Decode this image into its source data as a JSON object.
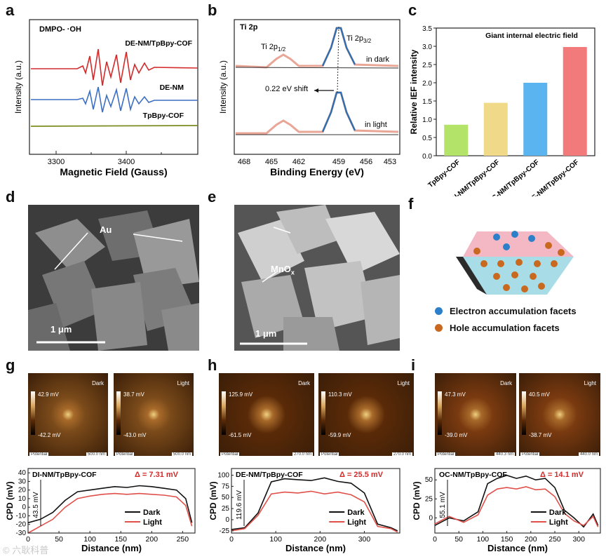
{
  "panels": {
    "a": {
      "label": "a",
      "tag": "DMPO- ·OH",
      "xlabel": "Magnetic Field (Gauss)",
      "ylabel": "Intensity (a.u.)",
      "xticks": [
        "3300",
        "3400"
      ],
      "traces": [
        "DE-NM/TpBpy-COF",
        "DE-NM",
        "TpBpy-COF"
      ],
      "colors": [
        "#d42a2a",
        "#3d6fc4",
        "#7a8c1f"
      ]
    },
    "b": {
      "label": "b",
      "tag": "Ti 2p",
      "xlabel": "Binding Energy (eV)",
      "ylabel": "Intensity (a.u.)",
      "xticks": [
        "468",
        "465",
        "462",
        "459",
        "456",
        "453"
      ],
      "peak_half": "Ti 2p",
      "peak_half_sub": "1/2",
      "peak_32": "Ti 2p",
      "peak_32_sub": "3/2",
      "dark": "in dark",
      "light": "in light",
      "shift": "0.22 eV shift"
    },
    "c": {
      "label": "c",
      "annotation": "Giant internal electric field"
    },
    "d": {
      "label": "d",
      "marker": "Au",
      "scale": "1 μm"
    },
    "e": {
      "label": "e",
      "marker": "MnO",
      "marker_sub": "x",
      "scale": "1 μm"
    },
    "f": {
      "label": "f",
      "electron": "Electron accumulation facets",
      "hole": "Hole accumulation facets",
      "electron_color": "#2c7fc9",
      "hole_color": "#c8691f"
    },
    "g": {
      "label": "g",
      "map_dark": {
        "mode": "Dark",
        "max": "42.9 mV",
        "min": "-42.2 mV",
        "pot": "Potential",
        "scale": "500.0 nm"
      },
      "map_light": {
        "mode": "Light",
        "max": "38.7 mV",
        "min": "-43.0 mV",
        "pot": "Potential",
        "scale": "500.0 nm"
      },
      "title": "DI-NM/TpBpy-COF",
      "delta": "Δ = 7.31 mV",
      "height": "43.5 mV",
      "xlabel": "Distance (nm)",
      "ylabel": "CPD (mV)",
      "xticks": [
        "0",
        "50",
        "100",
        "150",
        "200",
        "250"
      ],
      "yticks": [
        "40",
        "30",
        "20",
        "10",
        "0",
        "-10",
        "-20",
        "-30"
      ],
      "legend": [
        "Dark",
        "Light"
      ]
    },
    "h": {
      "label": "h",
      "map_dark": {
        "mode": "Dark",
        "max": "125.9 mV",
        "min": "-61.5 mV",
        "pot": "Potential",
        "scale": "270.0 nm"
      },
      "map_light": {
        "mode": "Light",
        "max": "110.3 mV",
        "min": "-59.9 mV",
        "pot": "Potential",
        "scale": "270.0 nm"
      },
      "title": "DE-NM/TpBpy-COF",
      "delta": "Δ = 25.5 mV",
      "height": "119.6 mV",
      "xlabel": "Distance (nm)",
      "ylabel": "CPD (mV)",
      "xticks": [
        "0",
        "100",
        "200",
        "300"
      ],
      "yticks": [
        "100",
        "75",
        "50",
        "25",
        "0",
        "-25"
      ],
      "legend": [
        "Dark",
        "Light"
      ]
    },
    "i": {
      "label": "i",
      "map_dark": {
        "mode": "Dark",
        "max": "47.3 mV",
        "min": "-39.0 mV",
        "pot": "Potential",
        "scale": "440.3 nm"
      },
      "map_light": {
        "mode": "Light",
        "max": "40.5 mV",
        "min": "-38.7 mV",
        "pot": "Potential",
        "scale": "440.0 nm"
      },
      "title": "OC-NM/TpBpy-COF",
      "delta": "Δ = 14.1 mV",
      "height": "55.1 mV",
      "xlabel": "Distance (nm)",
      "ylabel": "CPD (mV)",
      "xticks": [
        "0",
        "50",
        "100",
        "150",
        "200",
        "250",
        "300"
      ],
      "yticks": [
        "50",
        "25",
        "0"
      ],
      "legend": [
        "Dark",
        "Light"
      ]
    }
  },
  "watermark": "© 六耿科普",
  "chart_data": [
    {
      "type": "bar",
      "panel": "c",
      "categories": [
        "TpBpy-COF",
        "DI-NM/TpBpy-COF",
        "OC-NM/TpBpy-COF",
        "DE-NM/TpBpy-COF"
      ],
      "values": [
        0.85,
        1.45,
        2.0,
        2.98
      ],
      "colors": [
        "#b4e36a",
        "#f1d98a",
        "#5ab4ef",
        "#f27a7a"
      ],
      "ylabel": "Relative IEF intensity",
      "ylim": [
        0,
        3.5
      ],
      "yticks": [
        "0.0",
        "0.5",
        "1.0",
        "1.5",
        "2.0",
        "2.5",
        "3.0",
        "3.5"
      ],
      "title": "Giant internal electric field"
    },
    {
      "type": "line",
      "panel": "g",
      "x": [
        0,
        20,
        40,
        60,
        80,
        100,
        120,
        140,
        160,
        180,
        200,
        220,
        240,
        255,
        265
      ],
      "series": [
        {
          "name": "Dark",
          "values": [
            -18,
            -14,
            -6,
            8,
            18,
            20,
            22,
            24,
            23,
            25,
            24,
            22,
            20,
            10,
            -18
          ]
        },
        {
          "name": "Light",
          "values": [
            -30,
            -22,
            -14,
            0,
            10,
            13,
            15,
            16,
            15,
            16,
            15,
            14,
            12,
            2,
            -22
          ]
        }
      ],
      "xlim": [
        0,
        270
      ],
      "ylim": [
        -30,
        45
      ]
    },
    {
      "type": "line",
      "panel": "h",
      "x": [
        0,
        30,
        60,
        90,
        120,
        150,
        180,
        210,
        240,
        270,
        300,
        330,
        360,
        375
      ],
      "series": [
        {
          "name": "Dark",
          "values": [
            -22,
            -18,
            15,
            85,
            92,
            90,
            88,
            94,
            86,
            82,
            60,
            -10,
            -18,
            -25
          ]
        },
        {
          "name": "Light",
          "values": [
            -25,
            -20,
            10,
            58,
            62,
            60,
            64,
            58,
            62,
            56,
            40,
            -15,
            -20,
            -28
          ]
        }
      ],
      "xlim": [
        0,
        380
      ],
      "ylim": [
        -30,
        115
      ]
    },
    {
      "type": "line",
      "panel": "i",
      "x": [
        0,
        30,
        60,
        90,
        110,
        130,
        150,
        170,
        190,
        210,
        230,
        250,
        270,
        290,
        310,
        330,
        340
      ],
      "series": [
        {
          "name": "Dark",
          "values": [
            -10,
            0,
            -4,
            8,
            45,
            52,
            56,
            52,
            55,
            50,
            52,
            40,
            10,
            0,
            -12,
            5,
            -10
          ]
        },
        {
          "name": "Light",
          "values": [
            -8,
            2,
            -6,
            4,
            30,
            38,
            40,
            38,
            41,
            37,
            38,
            28,
            6,
            -4,
            -10,
            2,
            -12
          ]
        }
      ],
      "xlim": [
        0,
        345
      ],
      "ylim": [
        -20,
        65
      ]
    }
  ]
}
